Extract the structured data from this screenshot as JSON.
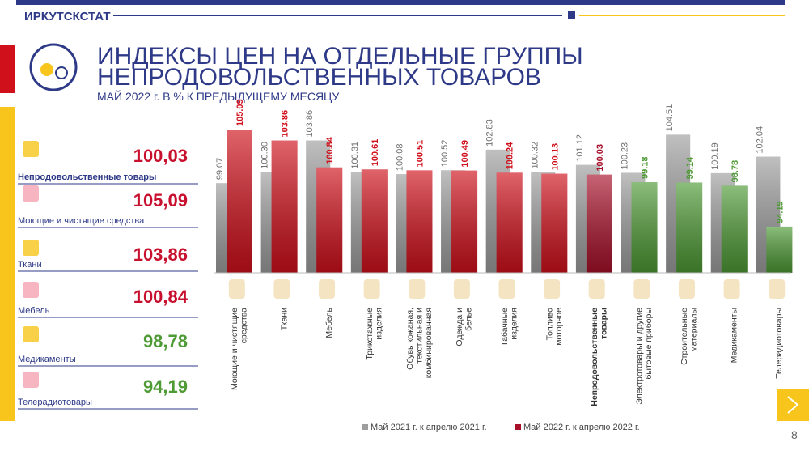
{
  "header": {
    "org": "ИРКУТСКСТАТ",
    "title_line1": "ИНДЕКСЫ ЦЕН НА ОТДЕЛЬНЫЕ ГРУППЫ",
    "title_line2": "НЕПРОДОВОЛЬСТВЕННЫХ ТОВАРОВ",
    "subtitle": "МАЙ 2022 г. В % К ПРЕДЫДУЩЕМУ МЕСЯЦУ"
  },
  "summary": [
    {
      "label": "Непродовольственные товары",
      "value": "100,03",
      "color": "#c8102e"
    },
    {
      "label": "Моющие и чистящие средства",
      "value": "105,09",
      "color": "#c8102e"
    },
    {
      "label": "Ткани",
      "value": "103,86",
      "color": "#c8102e"
    },
    {
      "label": "Мебель",
      "value": "100,84",
      "color": "#c8102e"
    },
    {
      "label": "Медикаменты",
      "value": "98,78",
      "color": "#4e9a35"
    },
    {
      "label": "Телерадиотовары",
      "value": "94,19",
      "color": "#4e9a35"
    }
  ],
  "page_number": "8",
  "chart_data": {
    "type": "bar",
    "categories": [
      "Моющие и чистящие\nсредства",
      "Ткани",
      "Мебель",
      "Трикотажные\nизделия",
      "Обувь кожаная,\nтекстильная и\nкомбинированная",
      "Одежда и\nбелье",
      "Табачные\nизделия",
      "Топливо\nмоторное",
      "Непродовольственные\nтовары",
      "Электротовары и другие\nбытовые приборы",
      "Строительные\nматериалы",
      "Медикаменты",
      "Телерадиотовары"
    ],
    "bold_category": 8,
    "series": [
      {
        "name": "Май 2021 г. к апрелю 2021 г.",
        "color": "#9e9e9e",
        "label_color": "#6f6f6f",
        "values": [
          99.07,
          100.3,
          103.86,
          100.31,
          100.08,
          100.52,
          102.83,
          100.32,
          101.12,
          100.23,
          104.51,
          100.19,
          102.04
        ],
        "value_labels": [
          "99.07",
          "100.30",
          "103.86",
          "100.31",
          "100.08",
          "100.52",
          "102.83",
          "100.32",
          "101.12",
          "100.23",
          "104.51",
          "100.19",
          "102.04"
        ]
      },
      {
        "name": "Май 2022 г. к апрелю 2022 г.",
        "color": "#d0101b",
        "colors": [
          "#d0101b",
          "#d0101b",
          "#d0101b",
          "#d0101b",
          "#d0101b",
          "#d0101b",
          "#d0101b",
          "#d0101b",
          "#a8102a",
          "#4e9a35",
          "#4e9a35",
          "#4e9a35",
          "#4e9a35"
        ],
        "values": [
          105.09,
          103.86,
          100.84,
          100.61,
          100.51,
          100.49,
          100.24,
          100.13,
          100.03,
          99.18,
          99.14,
          98.78,
          94.19
        ],
        "value_labels": [
          "105.09",
          "103.86",
          "100.84",
          "100.61",
          "100.51",
          "100.49",
          "100.24",
          "100.13",
          "100.03",
          "99.18",
          "99.14",
          "98.78",
          "94.19"
        ]
      }
    ],
    "ylim": [
      89,
      106
    ]
  }
}
